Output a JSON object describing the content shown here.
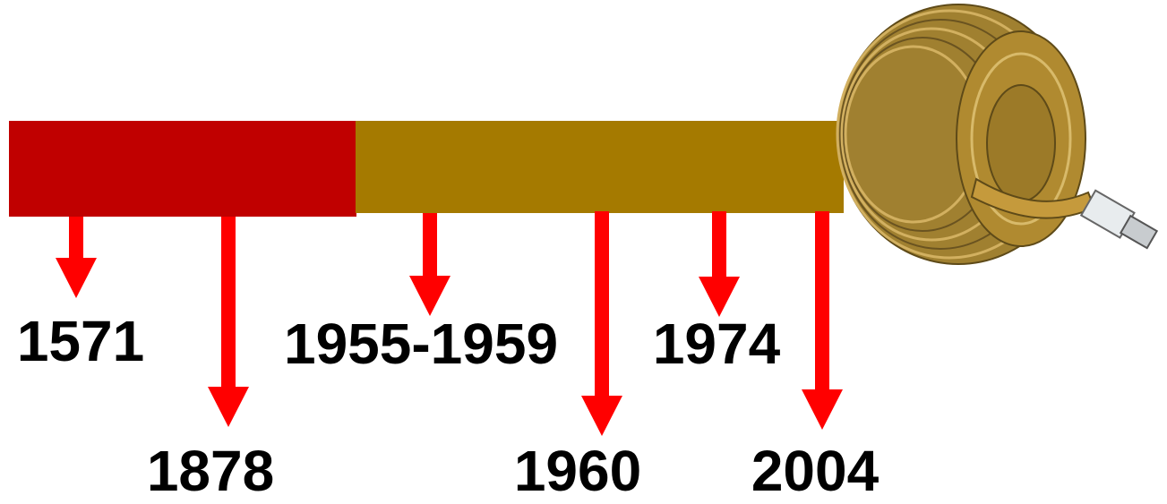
{
  "events": [
    {
      "label": "1571"
    },
    {
      "label": "1878"
    },
    {
      "label": "1955-1959"
    },
    {
      "label": "1960"
    },
    {
      "label": "1974"
    },
    {
      "label": "2004"
    }
  ]
}
